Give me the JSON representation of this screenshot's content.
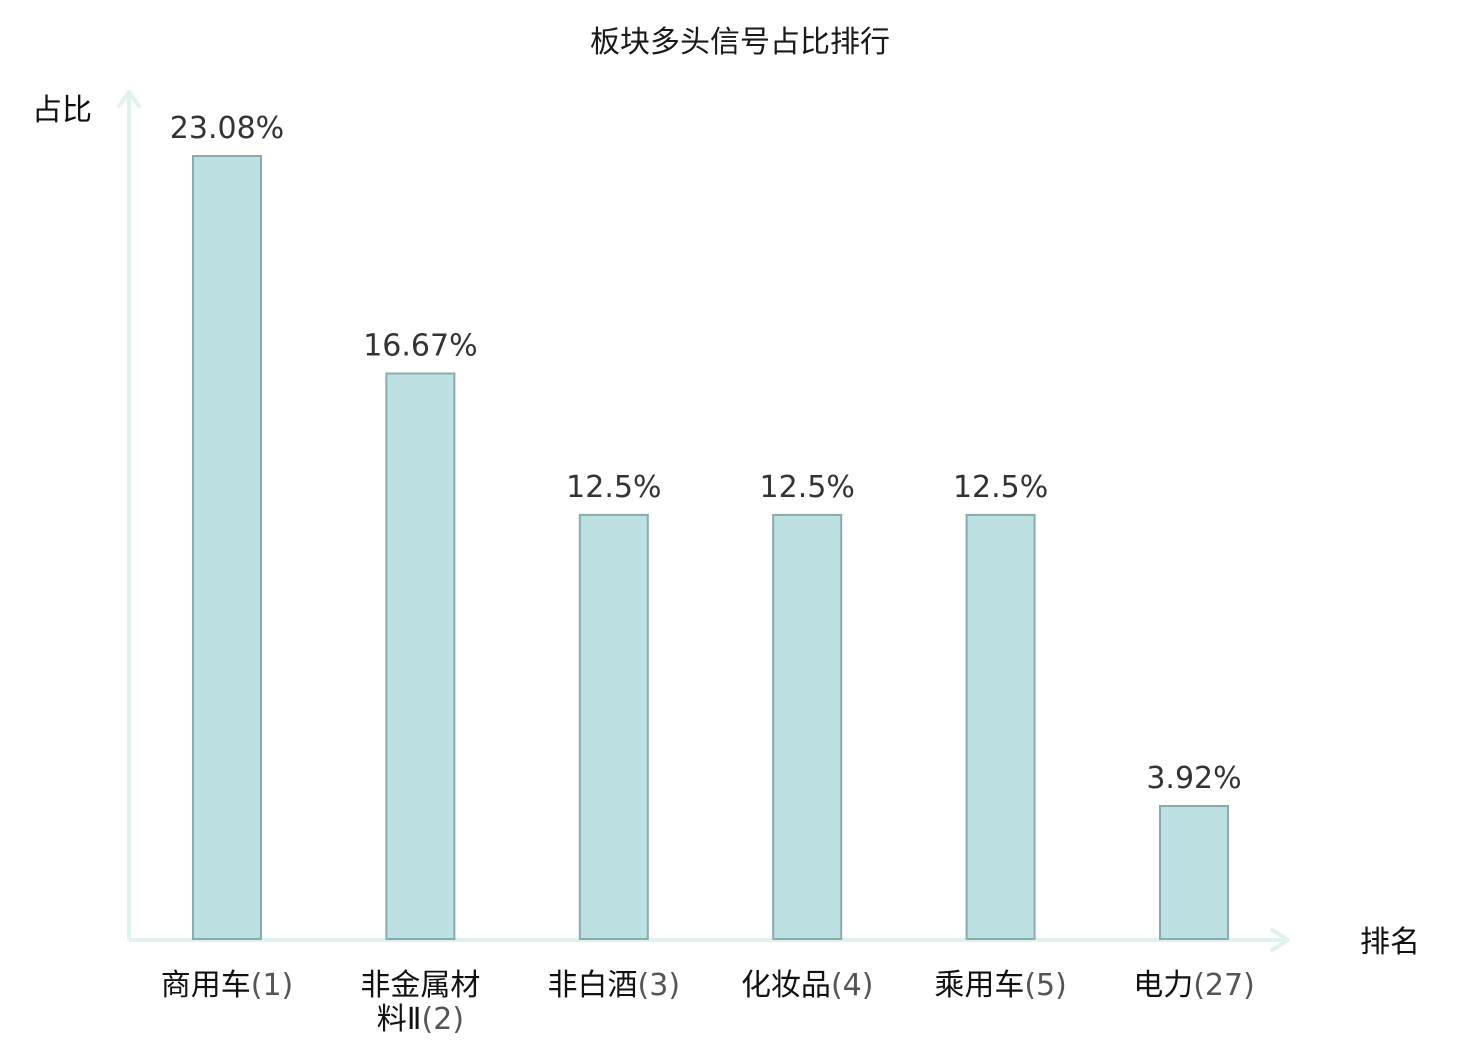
{
  "chart_data": {
    "type": "bar",
    "title": "板块多头信号占比排行",
    "ylabel": "占比",
    "xlabel": "排名",
    "ylim": [
      0,
      25
    ],
    "grid": false,
    "categories": [
      {
        "name_lines": [
          "商用车"
        ],
        "rank": "(1)",
        "highlight": false
      },
      {
        "name_lines": [
          "非金属材",
          "料Ⅱ"
        ],
        "rank": "(2)",
        "highlight": false
      },
      {
        "name_lines": [
          "非白酒"
        ],
        "rank": "(3)",
        "highlight": false
      },
      {
        "name_lines": [
          "化妆品"
        ],
        "rank": "(4)",
        "highlight": false
      },
      {
        "name_lines": [
          "乘用车"
        ],
        "rank": "(5)",
        "highlight": false
      },
      {
        "name_lines": [
          "电力"
        ],
        "rank": "(27)",
        "highlight": true
      }
    ],
    "values": [
      23.08,
      16.67,
      12.5,
      12.5,
      12.5,
      3.92
    ],
    "value_labels": [
      "23.08%",
      "16.67%",
      "12.5%",
      "12.5%",
      "12.5%",
      "3.92%"
    ],
    "colors": {
      "bar_fill": "#bde1e3",
      "bar_stroke": "#8aabad",
      "axis": "#dff2ef",
      "highlight": "#e0141e"
    }
  }
}
